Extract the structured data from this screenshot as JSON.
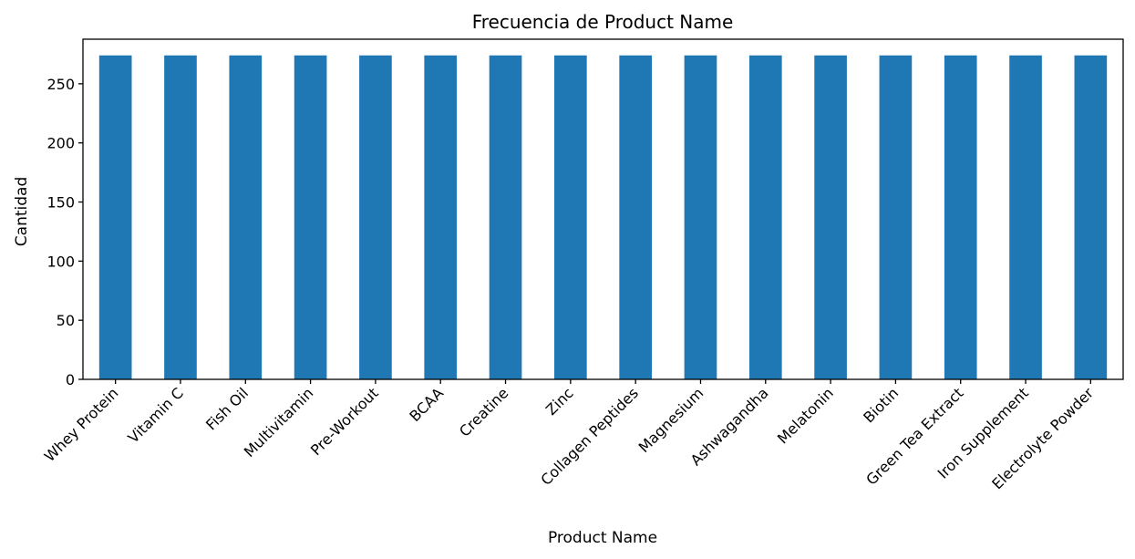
{
  "chart_data": {
    "type": "bar",
    "title": "Frecuencia de Product Name",
    "xlabel": "Product Name",
    "ylabel": "Cantidad",
    "categories": [
      "Whey Protein",
      "Vitamin C",
      "Fish Oil",
      "Multivitamin",
      "Pre-Workout",
      "BCAA",
      "Creatine",
      "Zinc",
      "Collagen Peptides",
      "Magnesium",
      "Ashwagandha",
      "Melatonin",
      "Biotin",
      "Green Tea Extract",
      "Iron Supplement",
      "Electrolyte Powder"
    ],
    "values": [
      274,
      274,
      274,
      274,
      274,
      274,
      274,
      274,
      274,
      274,
      274,
      274,
      274,
      274,
      274,
      274
    ],
    "yticks": [
      0,
      50,
      100,
      150,
      200,
      250
    ],
    "ylim": [
      0,
      287.7
    ],
    "bar_color": "#1f77b4",
    "grid": false,
    "legend": "none"
  }
}
